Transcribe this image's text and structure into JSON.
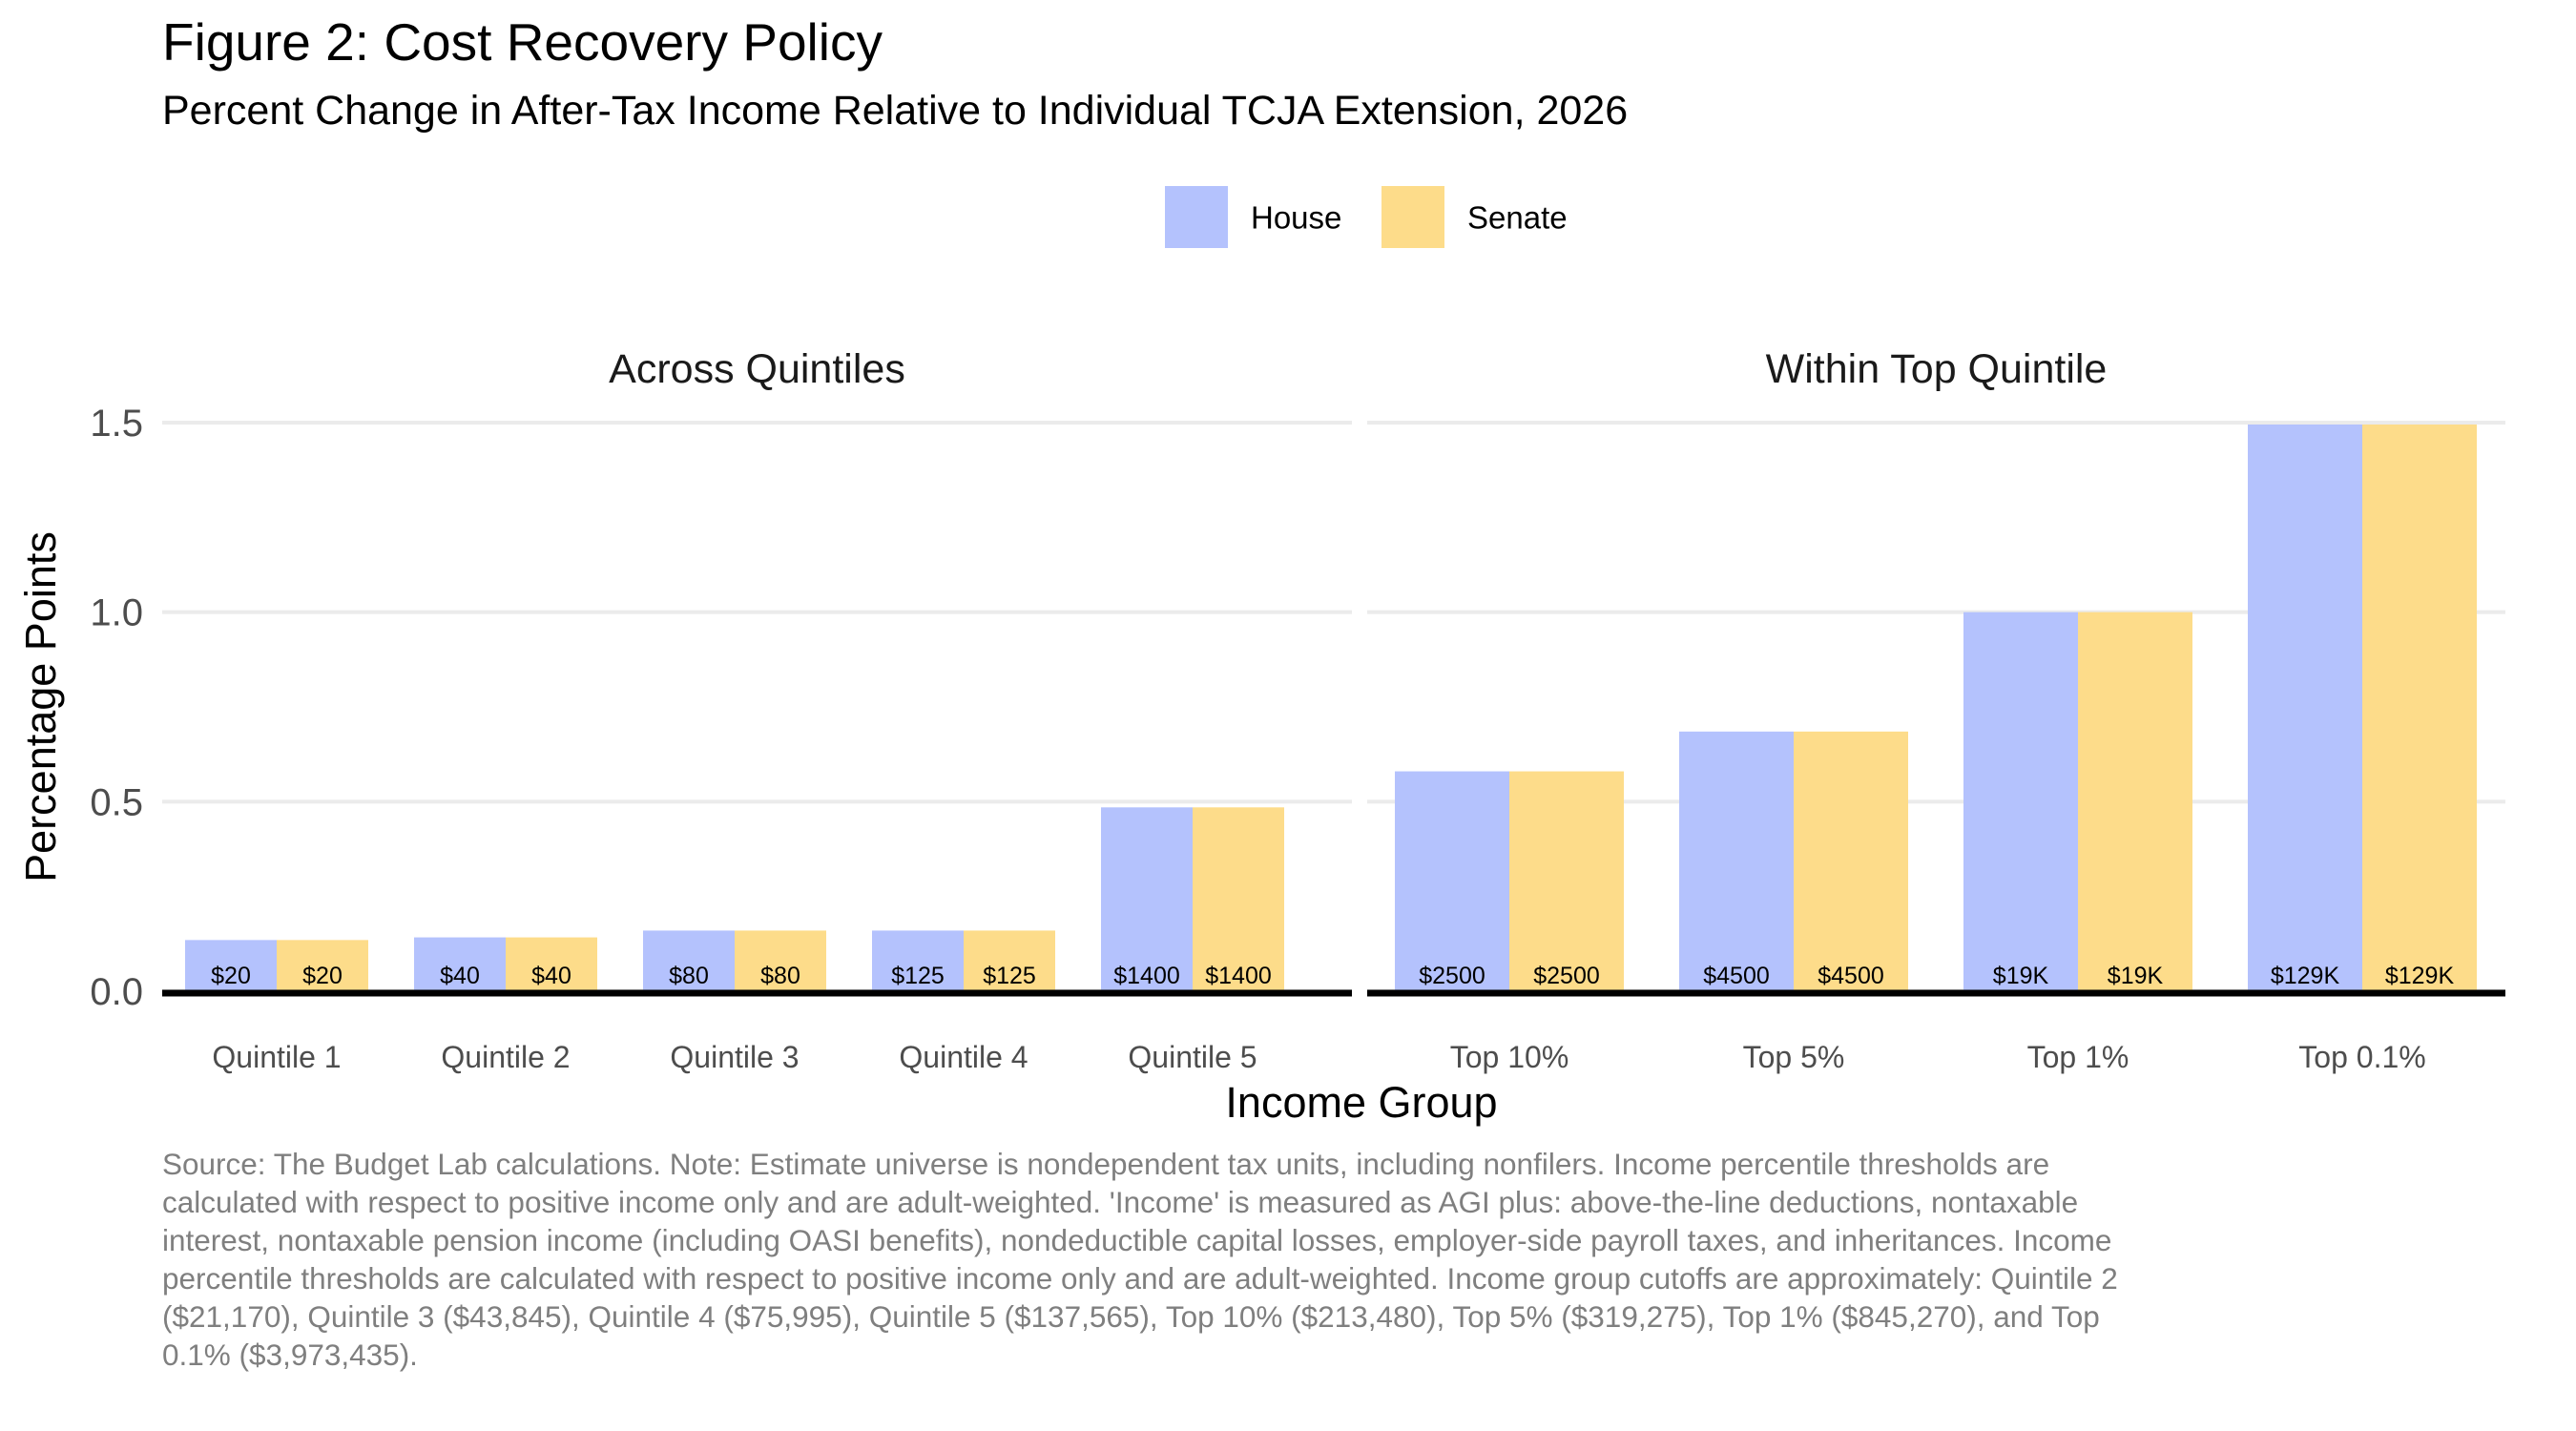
{
  "title": "Figure 2: Cost Recovery Policy",
  "subtitle": "Percent Change in After-Tax Income Relative to Individual TCJA Extension, 2026",
  "caption": "Source: The Budget Lab calculations. Note: Estimate universe is nondependent tax units, including nonfilers. Income percentile thresholds are calculated with respect to positive income only and are adult-weighted. 'Income' is measured as AGI plus: above-the-line deductions, nontaxable interest, nontaxable pension income (including OASI benefits), nondeductible capital losses, employer-side payroll taxes, and inheritances. Income percentile thresholds are calculated with respect to positive income only and are adult-weighted. Income group cutoffs are approximately: Quintile 2 ($21,170), Quintile 3 ($43,845), Quintile 4 ($75,995), Quintile 5 ($137,565), Top 10% ($213,480), Top 5% ($319,275), Top 1% ($845,270), and Top 0.1% ($3,973,435).",
  "chart_data": {
    "type": "bar",
    "xlabel": "Income Group",
    "ylabel": "Percentage Points",
    "ylim": [
      0,
      1.5
    ],
    "yticks": [
      0,
      0.5,
      1,
      1.5
    ],
    "ytick_labels": [
      "0.0",
      "0.5",
      "1.0",
      "1.5"
    ],
    "grid": true,
    "legend_position": "top-center",
    "colors": {
      "House": "#b4c2fd",
      "Senate": "#fddc8a"
    },
    "legend": [
      "House",
      "Senate"
    ],
    "panels": [
      {
        "name": "Across Quintiles",
        "categories": [
          "Quintile 1",
          "Quintile 2",
          "Quintile 3",
          "Quintile 4",
          "Quintile 5"
        ],
        "series": [
          {
            "name": "House",
            "values": [
              0.135,
              0.142,
              0.16,
              0.16,
              0.485
            ],
            "labels": [
              "$20",
              "$40",
              "$80",
              "$125",
              "$1400"
            ]
          },
          {
            "name": "Senate",
            "values": [
              0.135,
              0.142,
              0.16,
              0.16,
              0.485
            ],
            "labels": [
              "$20",
              "$40",
              "$80",
              "$125",
              "$1400"
            ]
          }
        ]
      },
      {
        "name": "Within Top Quintile",
        "categories": [
          "Top 10%",
          "Top 5%",
          "Top 1%",
          "Top 0.1%"
        ],
        "series": [
          {
            "name": "House",
            "values": [
              0.58,
              0.685,
              1.0,
              1.495
            ],
            "labels": [
              "$2500",
              "$4500",
              "$19K",
              "$129K"
            ]
          },
          {
            "name": "Senate",
            "values": [
              0.58,
              0.685,
              1.0,
              1.495
            ],
            "labels": [
              "$2500",
              "$4500",
              "$19K",
              "$129K"
            ]
          }
        ]
      }
    ]
  }
}
